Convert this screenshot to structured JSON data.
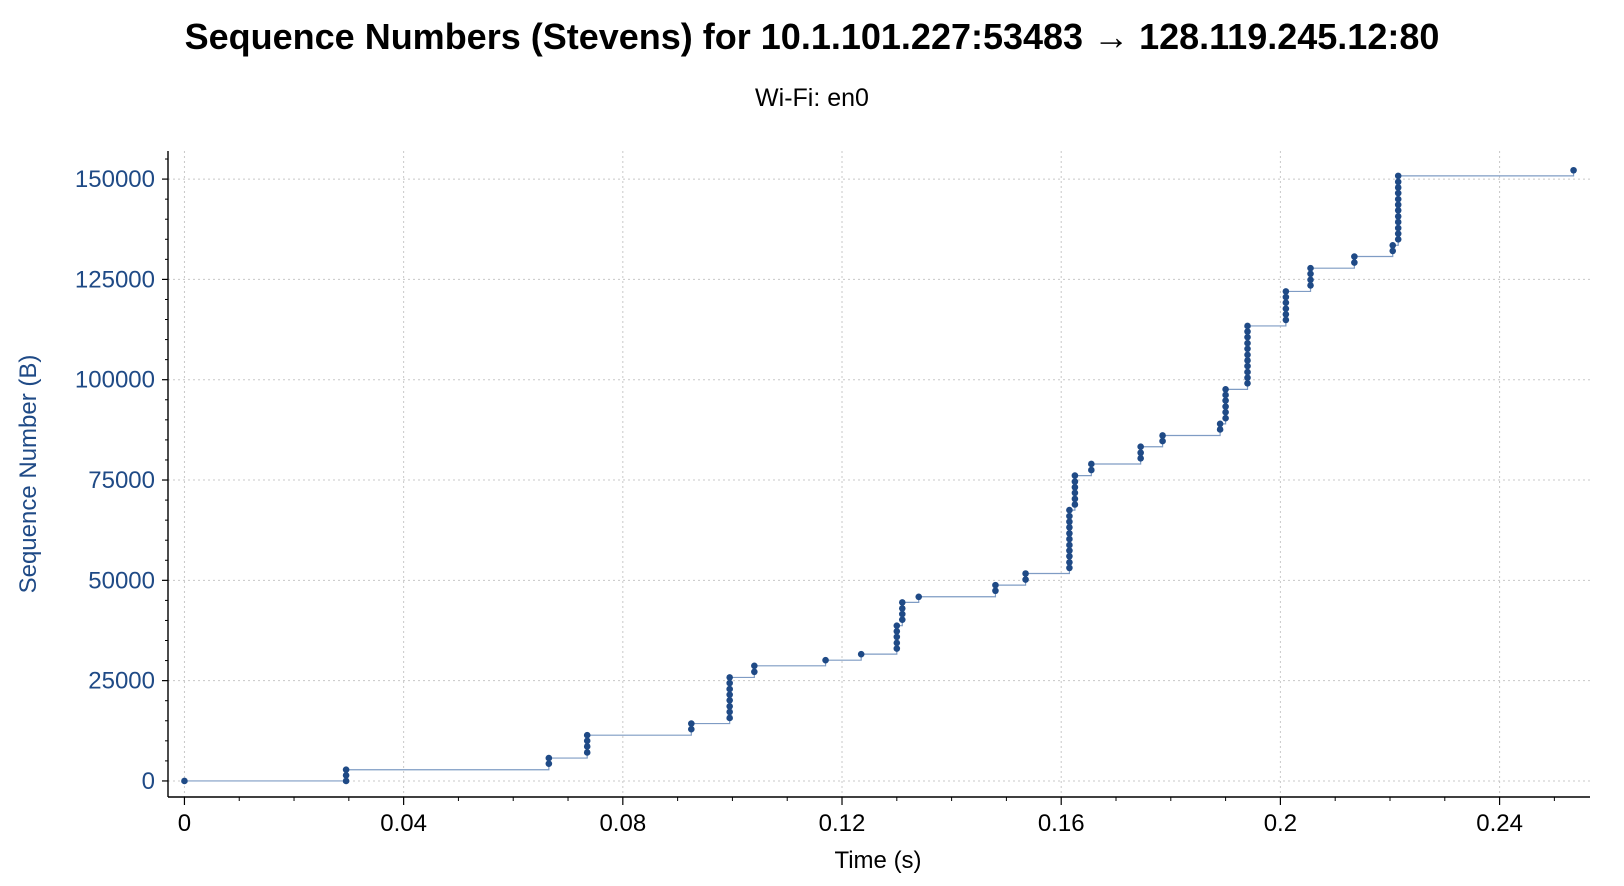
{
  "colors": {
    "accent": "#1f4a86",
    "step_line": "#7f9cc4",
    "axis": "#000000",
    "grid": "#c8c8c8"
  },
  "chart_data": {
    "type": "scatter",
    "title": "Sequence Numbers (Stevens) for 10.1.101.227:53483 → 128.119.245.12:80",
    "subtitle": "Wi-Fi: en0",
    "xlabel": "Time (s)",
    "ylabel": "Sequence Number (B)",
    "xlim": [
      -0.003,
      0.2565
    ],
    "ylim": [
      -4000,
      157000
    ],
    "x_ticks": [
      0,
      0.04,
      0.08,
      0.12,
      0.16,
      0.2,
      0.24
    ],
    "x_tick_labels": [
      "0",
      "0.04",
      "0.08",
      "0.12",
      "0.16",
      "0.2",
      "0.24"
    ],
    "y_ticks": [
      0,
      25000,
      50000,
      75000,
      100000,
      125000,
      150000
    ],
    "y_tick_labels": [
      "0",
      "25000",
      "50000",
      "75000",
      "100000",
      "125000",
      "150000"
    ],
    "grid": true,
    "step_line": true,
    "series": [
      {
        "points": [
          [
            0.0,
            0
          ],
          [
            0.0295,
            0
          ],
          [
            0.0295,
            1400
          ],
          [
            0.0295,
            2800
          ],
          [
            0.0665,
            4300
          ],
          [
            0.0665,
            5700
          ],
          [
            0.0735,
            7100
          ],
          [
            0.0735,
            8600
          ],
          [
            0.0735,
            10000
          ],
          [
            0.0735,
            11400
          ],
          [
            0.0925,
            12900
          ],
          [
            0.0925,
            14300
          ],
          [
            0.0995,
            15700
          ],
          [
            0.0995,
            17200
          ],
          [
            0.0995,
            18600
          ],
          [
            0.0995,
            20100
          ],
          [
            0.0995,
            21500
          ],
          [
            0.0995,
            22900
          ],
          [
            0.0995,
            24400
          ],
          [
            0.0995,
            25800
          ],
          [
            0.104,
            27200
          ],
          [
            0.104,
            28700
          ],
          [
            0.117,
            30100
          ],
          [
            0.1235,
            31600
          ],
          [
            0.13,
            33000
          ],
          [
            0.13,
            34400
          ],
          [
            0.13,
            35900
          ],
          [
            0.13,
            37300
          ],
          [
            0.13,
            38700
          ],
          [
            0.131,
            40200
          ],
          [
            0.131,
            41600
          ],
          [
            0.131,
            43000
          ],
          [
            0.131,
            44500
          ],
          [
            0.134,
            45900
          ],
          [
            0.148,
            47400
          ],
          [
            0.148,
            48800
          ],
          [
            0.1535,
            50200
          ],
          [
            0.1535,
            51700
          ],
          [
            0.1615,
            53100
          ],
          [
            0.1615,
            54500
          ],
          [
            0.1615,
            56000
          ],
          [
            0.1615,
            57400
          ],
          [
            0.1615,
            58800
          ],
          [
            0.1615,
            60300
          ],
          [
            0.1615,
            61700
          ],
          [
            0.1615,
            63200
          ],
          [
            0.1615,
            64600
          ],
          [
            0.1615,
            66000
          ],
          [
            0.1615,
            67500
          ],
          [
            0.1625,
            68900
          ],
          [
            0.1625,
            70300
          ],
          [
            0.1625,
            71800
          ],
          [
            0.1625,
            73200
          ],
          [
            0.1625,
            74600
          ],
          [
            0.1625,
            76100
          ],
          [
            0.1655,
            77500
          ],
          [
            0.1655,
            79000
          ],
          [
            0.1745,
            80400
          ],
          [
            0.1745,
            81800
          ],
          [
            0.1745,
            83300
          ],
          [
            0.1785,
            84700
          ],
          [
            0.1785,
            86100
          ],
          [
            0.189,
            87600
          ],
          [
            0.189,
            89000
          ],
          [
            0.19,
            90400
          ],
          [
            0.19,
            91900
          ],
          [
            0.19,
            93300
          ],
          [
            0.19,
            94800
          ],
          [
            0.19,
            96200
          ],
          [
            0.19,
            97600
          ],
          [
            0.194,
            99100
          ],
          [
            0.194,
            100500
          ],
          [
            0.194,
            101900
          ],
          [
            0.194,
            103400
          ],
          [
            0.194,
            104800
          ],
          [
            0.194,
            106200
          ],
          [
            0.194,
            107700
          ],
          [
            0.194,
            109100
          ],
          [
            0.194,
            110600
          ],
          [
            0.194,
            112000
          ],
          [
            0.194,
            113400
          ],
          [
            0.201,
            114900
          ],
          [
            0.201,
            116300
          ],
          [
            0.201,
            117700
          ],
          [
            0.201,
            119200
          ],
          [
            0.201,
            120600
          ],
          [
            0.201,
            122000
          ],
          [
            0.2055,
            123500
          ],
          [
            0.2055,
            124900
          ],
          [
            0.2055,
            126400
          ],
          [
            0.2055,
            127800
          ],
          [
            0.2135,
            129200
          ],
          [
            0.2135,
            130700
          ],
          [
            0.2205,
            132100
          ],
          [
            0.2205,
            133500
          ],
          [
            0.2215,
            135000
          ],
          [
            0.2215,
            136400
          ],
          [
            0.2215,
            137800
          ],
          [
            0.2215,
            139300
          ],
          [
            0.2215,
            140700
          ],
          [
            0.2215,
            142200
          ],
          [
            0.2215,
            143600
          ],
          [
            0.2215,
            145000
          ],
          [
            0.2215,
            146500
          ],
          [
            0.2215,
            147900
          ],
          [
            0.2215,
            149300
          ],
          [
            0.2215,
            150800
          ],
          [
            0.2535,
            152200
          ]
        ]
      }
    ]
  }
}
